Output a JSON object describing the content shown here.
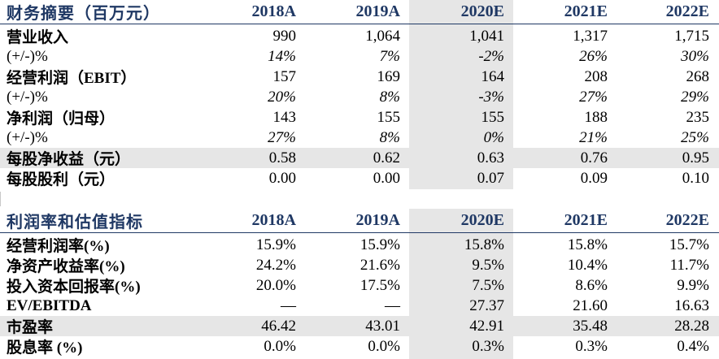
{
  "financial_summary": {
    "header": [
      "财务摘要（百万元）",
      "2018A",
      "2019A",
      "2020E",
      "2021E",
      "2022E"
    ],
    "rows": [
      {
        "label": "营业收入",
        "values": [
          "990",
          "1,064",
          "1,041",
          "1,317",
          "1,715"
        ],
        "italic": false
      },
      {
        "label": "(+/-)%",
        "values": [
          "14%",
          "7%",
          "-2%",
          "26%",
          "30%"
        ],
        "italic": true
      },
      {
        "label": "经营利润（EBIT）",
        "values": [
          "157",
          "169",
          "164",
          "208",
          "268"
        ],
        "italic": false
      },
      {
        "label": "(+/-)%",
        "values": [
          "20%",
          "8%",
          "-3%",
          "27%",
          "29%"
        ],
        "italic": true
      },
      {
        "label": "净利润（归母）",
        "values": [
          "143",
          "155",
          "155",
          "188",
          "235"
        ],
        "italic": false
      },
      {
        "label": "(+/-)%",
        "values": [
          "27%",
          "8%",
          "0%",
          "21%",
          "25%"
        ],
        "italic": true
      },
      {
        "label": "每股净收益（元）",
        "values": [
          "0.58",
          "0.62",
          "0.63",
          "0.76",
          "0.95"
        ],
        "italic": false,
        "shaded": true
      },
      {
        "label": "每股股利（元）",
        "values": [
          "0.00",
          "0.00",
          "0.07",
          "0.09",
          "0.10"
        ],
        "italic": false
      }
    ]
  },
  "profit_valuation": {
    "header": [
      "利润率和估值指标",
      "2018A",
      "2019A",
      "2020E",
      "2021E",
      "2022E"
    ],
    "rows": [
      {
        "label": "经营利润率(%)",
        "values": [
          "15.9%",
          "15.9%",
          "15.8%",
          "15.8%",
          "15.7%"
        ]
      },
      {
        "label": "净资产收益率(%)",
        "values": [
          "24.2%",
          "21.6%",
          "9.5%",
          "10.4%",
          "11.7%"
        ]
      },
      {
        "label": "投入资本回报率(%)",
        "values": [
          "20.0%",
          "17.5%",
          "7.5%",
          "8.6%",
          "9.9%"
        ]
      },
      {
        "label": "EV/EBITDA",
        "values": [
          "—",
          "—",
          "27.37",
          "21.60",
          "16.63"
        ]
      },
      {
        "label": "市盈率",
        "values": [
          "46.42",
          "43.01",
          "42.91",
          "35.48",
          "28.28"
        ],
        "shaded": true
      },
      {
        "label": "股息率 (%)",
        "values": [
          "0.0%",
          "0.0%",
          "0.3%",
          "0.3%",
          "0.4%"
        ]
      }
    ]
  },
  "colors": {
    "header_text": "#1f3864",
    "shade": "#e6e6e6"
  }
}
